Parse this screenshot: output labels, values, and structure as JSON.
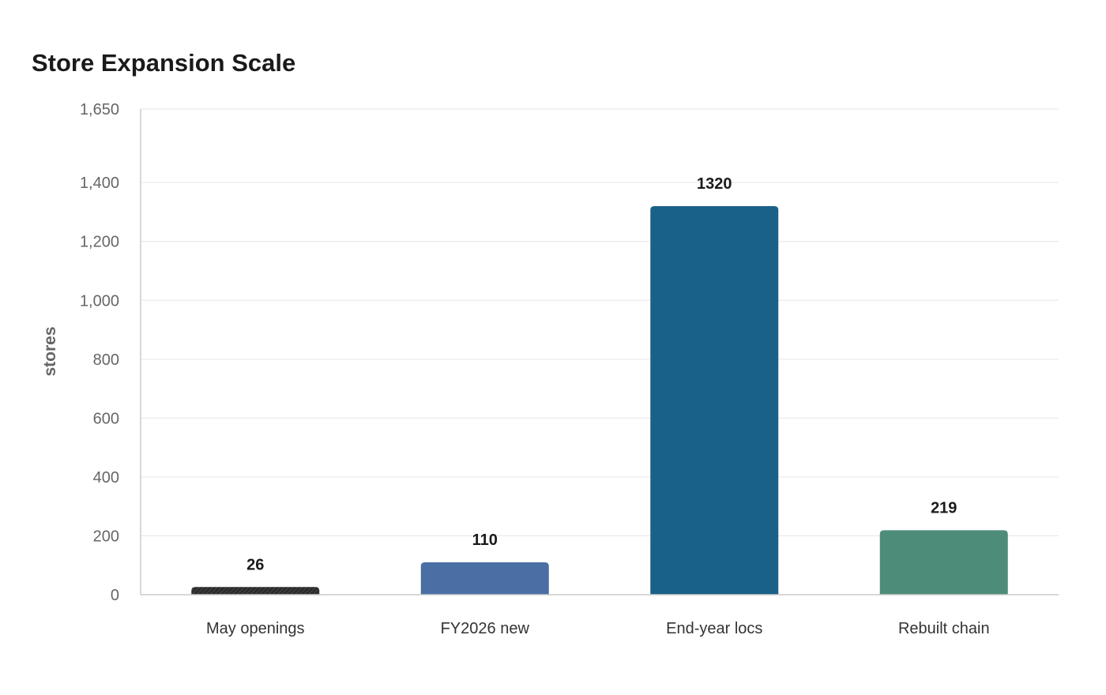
{
  "chart_data": {
    "type": "bar",
    "title": "Store Expansion Scale",
    "xlabel": "",
    "ylabel": "stores",
    "categories": [
      "May openings",
      "FY2026 new",
      "End-year locs",
      "Rebuilt chain"
    ],
    "values": [
      26,
      110,
      1320,
      219
    ],
    "value_labels": [
      "26",
      "110",
      "1320",
      "219"
    ],
    "bar_colors": [
      "#2b2b2b",
      "#4a6fa5",
      "#1a6189",
      "#4e8c7a"
    ],
    "ylim": [
      0,
      1650
    ],
    "yticks": [
      0,
      200,
      400,
      600,
      800,
      1000,
      1200,
      1400,
      1650
    ],
    "ytick_labels": [
      "0",
      "200",
      "400",
      "600",
      "800",
      "1,000",
      "1,200",
      "1,400",
      "1,650"
    ],
    "grid": true,
    "legend": "none"
  }
}
